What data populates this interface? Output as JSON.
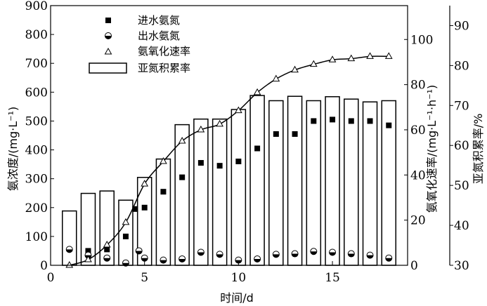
{
  "chart_data": {
    "type": "bar+scatter+line",
    "xlabel": "时间/d",
    "ylabel_left": "氨浓度/(mg·L⁻¹)",
    "ylabel_right1": "氨氧化速率/(mg·L⁻¹·h⁻¹)",
    "ylabel_right2": "亚氮积累率/%",
    "xlim": [
      0,
      19
    ],
    "x_ticks": [
      "0",
      "5",
      "10",
      "15"
    ],
    "ylim_left": [
      0,
      900
    ],
    "y_left_ticks": [
      "0",
      "100",
      "200",
      "300",
      "400",
      "500",
      "600",
      "700",
      "800",
      "900"
    ],
    "ylim_right1": [
      0,
      115
    ],
    "y_right1_ticks": [
      "0",
      "20",
      "40",
      "60",
      "80",
      "100"
    ],
    "ylim_right2": [
      30,
      95
    ],
    "y_right2_ticks": [
      "30",
      "40",
      "50",
      "60",
      "70",
      "80",
      "90"
    ],
    "legend": {
      "position": "top-left",
      "entries": [
        "进水氨氮",
        "出水氨氮",
        "氨氧化速率",
        "亚氮积累率"
      ]
    },
    "series": [
      {
        "name": "亚氮积累率",
        "kind": "bar",
        "axis": "right2",
        "x": [
          1,
          2,
          3,
          4,
          5,
          6,
          7,
          8,
          9,
          10,
          11,
          12,
          13,
          14,
          15,
          16,
          17,
          18
        ],
        "values": [
          43.6,
          48.0,
          48.6,
          46.3,
          52.0,
          56.6,
          65.2,
          66.6,
          66.6,
          69.0,
          72.5,
          71.2,
          72.3,
          71.2,
          72.2,
          71.6,
          70.9,
          71.2
        ]
      },
      {
        "name": "进水氨氮",
        "kind": "scatter",
        "marker": "square",
        "axis": "left",
        "x": [
          2,
          3,
          4,
          4.5,
          5,
          6,
          7,
          8,
          9,
          10,
          11,
          12,
          13,
          14,
          15,
          16,
          17,
          18
        ],
        "values": [
          50,
          55,
          100,
          195,
          200,
          255,
          305,
          355,
          345,
          360,
          405,
          455,
          455,
          500,
          505,
          500,
          500,
          485
        ]
      },
      {
        "name": "出水氨氮",
        "kind": "scatter",
        "marker": "half-circle",
        "axis": "left",
        "x": [
          1,
          2,
          3,
          4,
          4.7,
          5,
          6,
          7,
          8,
          9,
          10,
          11,
          12,
          13,
          14,
          15,
          16,
          17,
          18
        ],
        "values": [
          55,
          35,
          25,
          8,
          50,
          25,
          18,
          22,
          45,
          38,
          18,
          22,
          38,
          40,
          48,
          45,
          40,
          35,
          25
        ]
      },
      {
        "name": "氨氧化速率",
        "kind": "line-with-markers",
        "marker": "triangle",
        "axis": "right1",
        "x": [
          1,
          2,
          3,
          4,
          5,
          6,
          7,
          8,
          9,
          10,
          11,
          12,
          13,
          14,
          15,
          16,
          17,
          18
        ],
        "values": [
          0,
          2.5,
          9,
          19,
          36,
          46,
          55,
          60,
          62.5,
          68.5,
          76.5,
          82.5,
          86.5,
          89,
          91,
          91.5,
          92.5,
          92.5
        ]
      }
    ]
  }
}
